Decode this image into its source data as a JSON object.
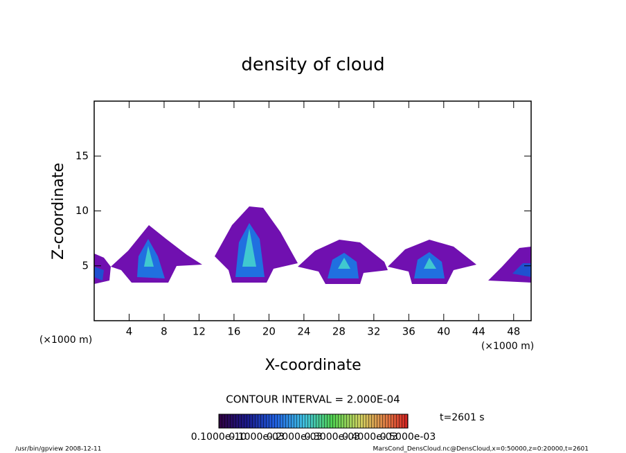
{
  "chart_data": {
    "type": "contour",
    "title": "density of cloud",
    "x_label": "X-coordinate",
    "y_label": "Z-coordinate",
    "x_unit": "(×1000 m)",
    "y_unit": "(×1000 m)",
    "xlim": [
      0,
      50
    ],
    "xticks": [
      4,
      8,
      12,
      16,
      20,
      24,
      28,
      32,
      36,
      40,
      44,
      48
    ],
    "ylim": [
      0,
      20
    ],
    "yticks": [
      5,
      10,
      15
    ],
    "contour_interval": "CONTOUR INTERVAL = 2.000E-04",
    "time": "t=2601 s",
    "colorbar_labels": [
      "0.1000e-10",
      "0.1000e-03",
      "0.2000e-03",
      "0.3000e-03",
      "0.4000e-03",
      "0.5000e-03"
    ],
    "footer_left": "/usr/bin/gpview   2008-12-11",
    "footer_right": "MarsCond_DensCloud.nc@DensCloud,x=0:50000,z=0:20000,t=2601"
  }
}
